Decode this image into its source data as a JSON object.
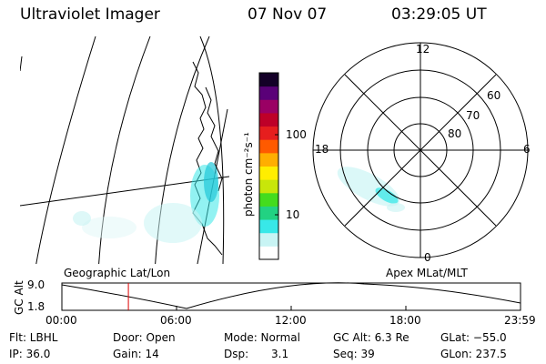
{
  "header": {
    "instrument": "Ultraviolet Imager",
    "date": "07 Nov 07",
    "time": "03:29:05 UT"
  },
  "colorbar": {
    "unit_label": "photon cm⁻²s⁻¹",
    "ticks": [
      "100",
      "10"
    ],
    "scale": "log",
    "colors": [
      "#ffffff",
      "#c8f4f4",
      "#38e8e8",
      "#22d282",
      "#44dc1e",
      "#c8e60a",
      "#ffee00",
      "#ffae00",
      "#ff5a00",
      "#e61e1e",
      "#be0028",
      "#9a0064",
      "#5a0078",
      "#140028"
    ]
  },
  "polar": {
    "mlt_labels": {
      "top": "12",
      "left": "18",
      "right": "6",
      "bottom": "0"
    },
    "lat_labels": [
      "60",
      "70",
      "80"
    ]
  },
  "projection_labels": {
    "left": "Geographic Lat/Lon",
    "right": "Apex  MLat/MLT"
  },
  "altitude_plot": {
    "axis_title": "GC Alt",
    "y_ticks": [
      "9.0",
      "1.8"
    ],
    "x_ticks": [
      "00:00",
      "06:00",
      "12:00",
      "18:00",
      "23:59"
    ],
    "marker_color": "#dd0000",
    "marker_time_hours": 3.48
  },
  "info": {
    "filter": "Flt: LBHL",
    "ip": "IP: 36.0",
    "door": "Door: Open",
    "gain": "Gain: 14",
    "mode": "Mode: Normal",
    "dsp_label": "Dsp:",
    "dsp_value": "3.1",
    "gc_alt": "GC Alt: 6.3 Re",
    "seq": "Seq: 39",
    "glat": "GLat: −55.0",
    "glon": "GLon: 237.5"
  }
}
